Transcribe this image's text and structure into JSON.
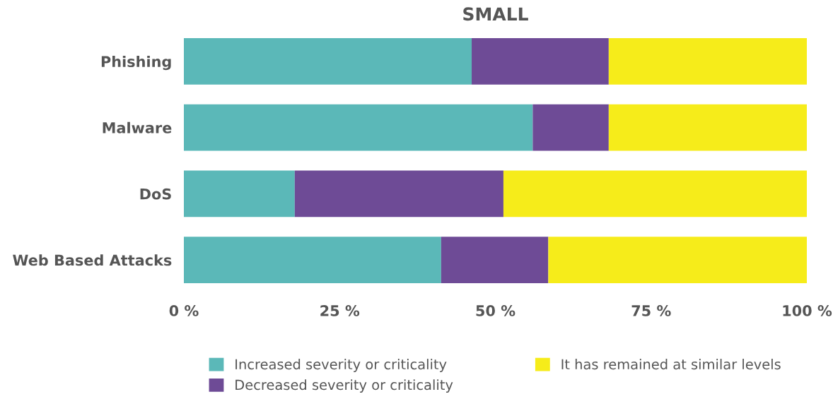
{
  "chart_data": {
    "type": "bar",
    "orientation": "horizontal",
    "stacked": true,
    "title": "SMALL",
    "categories": [
      "Phishing",
      "Malware",
      "DoS",
      "Web Based Attacks"
    ],
    "series": [
      {
        "name": "Increased severity or criticality",
        "color": "#5bb8b8",
        "values": [
          46.2,
          56.0,
          17.8,
          41.3
        ]
      },
      {
        "name": "Decreased severity or criticality",
        "color": "#6e4b96",
        "values": [
          22.0,
          12.2,
          33.5,
          17.2
        ]
      },
      {
        "name": "It has remained at similar levels",
        "color": "#f6ec1a",
        "values": [
          31.8,
          31.8,
          48.7,
          41.5
        ]
      }
    ],
    "xlim": [
      0,
      100
    ],
    "xticks": [
      {
        "value": 0,
        "label": "0 %"
      },
      {
        "value": 25,
        "label": "25 %"
      },
      {
        "value": 50,
        "label": "50 %"
      },
      {
        "value": 75,
        "label": "75 %"
      },
      {
        "value": 100,
        "label": "100 %"
      }
    ],
    "grid": false,
    "legend": "bottom"
  }
}
